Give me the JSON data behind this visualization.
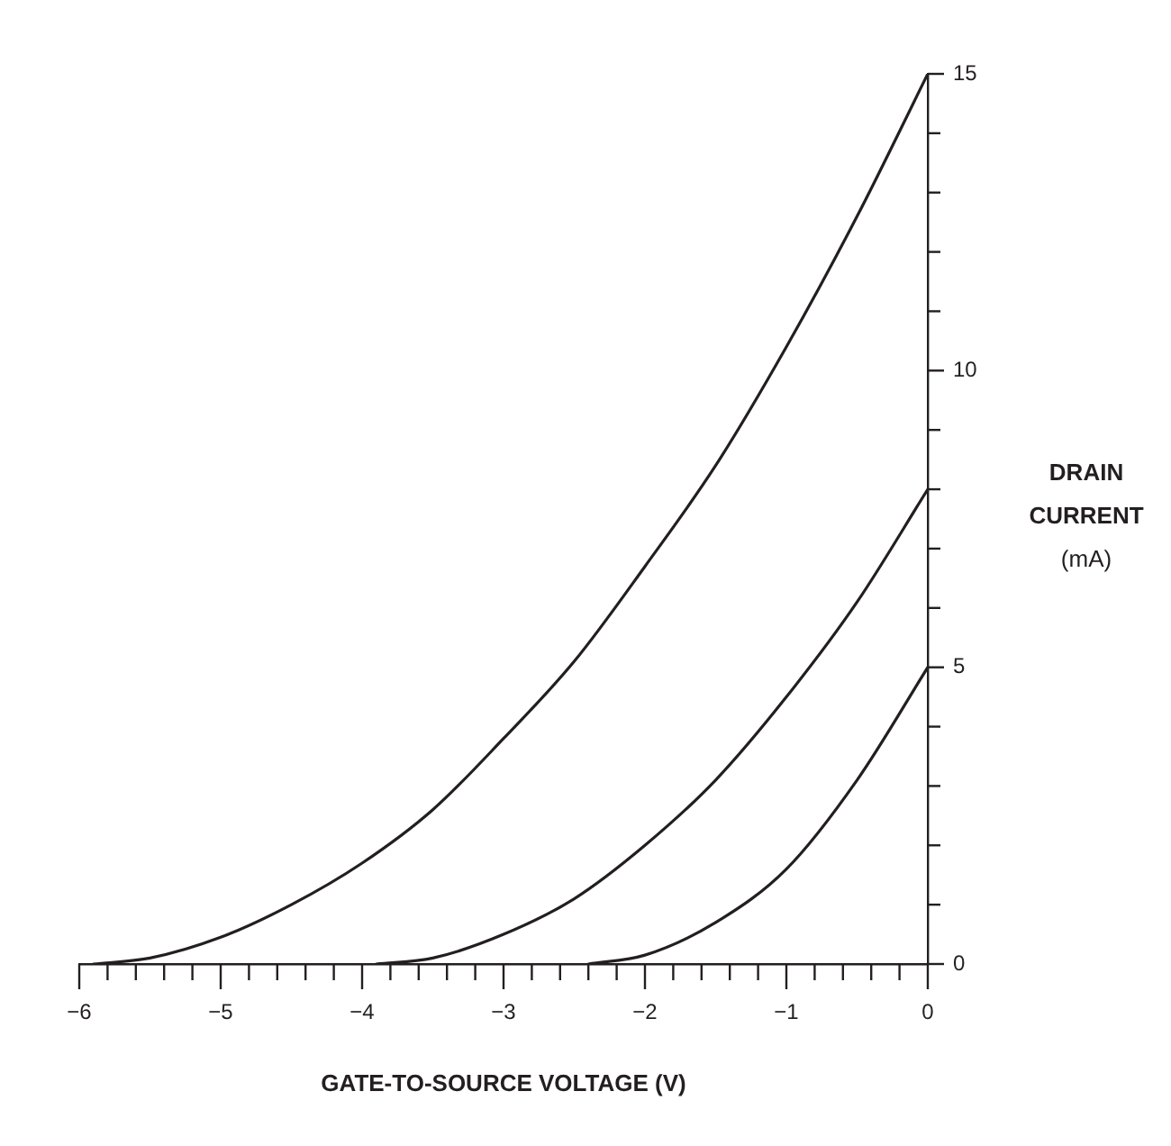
{
  "chart_data": {
    "type": "line",
    "xlabel": "GATE-TO-SOURCE VOLTAGE (V)",
    "ylabel": "DRAIN CURRENT (mA)",
    "marker": "none",
    "line_style": "solid",
    "xlim": [
      -6,
      0
    ],
    "xticks": [
      {
        "value": -6,
        "label": "−6"
      },
      {
        "value": -5.8,
        "label": null
      },
      {
        "value": -5.6,
        "label": null
      },
      {
        "value": -5.4,
        "label": null
      },
      {
        "value": -5.2,
        "label": null
      },
      {
        "value": -5,
        "label": "−5"
      },
      {
        "value": -4.8,
        "label": null
      },
      {
        "value": -4.6,
        "label": null
      },
      {
        "value": -4.4,
        "label": null
      },
      {
        "value": -4.2,
        "label": null
      },
      {
        "value": -4,
        "label": "−4"
      },
      {
        "value": -3.8,
        "label": null
      },
      {
        "value": -3.6,
        "label": null
      },
      {
        "value": -3.4,
        "label": null
      },
      {
        "value": -3.2,
        "label": null
      },
      {
        "value": -3,
        "label": "−3"
      },
      {
        "value": -2.8,
        "label": null
      },
      {
        "value": -2.6,
        "label": null
      },
      {
        "value": -2.4,
        "label": null
      },
      {
        "value": -2.2,
        "label": null
      },
      {
        "value": -2,
        "label": "−2"
      },
      {
        "value": -1.8,
        "label": null
      },
      {
        "value": -1.6,
        "label": null
      },
      {
        "value": -1.4,
        "label": null
      },
      {
        "value": -1.2,
        "label": null
      },
      {
        "value": -1,
        "label": "−1"
      },
      {
        "value": -0.8,
        "label": null
      },
      {
        "value": -0.6,
        "label": null
      },
      {
        "value": -0.4,
        "label": null
      },
      {
        "value": -0.2,
        "label": null
      },
      0
    ],
    "ylim": [
      0,
      15
    ],
    "yticks": [
      0,
      {
        "value": 1,
        "label": null
      },
      {
        "value": 2,
        "label": null
      },
      {
        "value": 3,
        "label": null
      },
      {
        "value": 4,
        "label": null
      },
      5,
      {
        "value": 6,
        "label": null
      },
      {
        "value": 7,
        "label": null
      },
      {
        "value": 8,
        "label": null
      },
      {
        "value": 9,
        "label": null
      },
      10,
      {
        "value": 11,
        "label": null
      },
      {
        "value": 12,
        "label": null
      },
      {
        "value": 13,
        "label": null
      },
      {
        "value": 14,
        "label": null
      },
      15
    ],
    "series": [
      {
        "color": "#231f20",
        "x": [
          -5.9,
          -5.5,
          -5,
          -4.5,
          -4,
          -3.5,
          -3,
          -2.5,
          -2,
          -1.5,
          -1,
          -0.5,
          0
        ],
        "values": [
          0,
          0.1,
          0.45,
          1,
          1.7,
          2.6,
          3.8,
          5.1,
          6.7,
          8.4,
          10.4,
          12.6,
          15
        ]
      },
      {
        "color": "#231f20",
        "x": [
          -3.9,
          -3.5,
          -3,
          -2.5,
          -2,
          -1.5,
          -1,
          -0.5,
          0
        ],
        "values": [
          0,
          0.1,
          0.5,
          1.1,
          2,
          3.1,
          4.5,
          6.1,
          8
        ]
      },
      {
        "color": "#231f20",
        "x": [
          -2.4,
          -2,
          -1.5,
          -1,
          -0.5,
          0
        ],
        "values": [
          0,
          0.15,
          0.7,
          1.6,
          3.1,
          5
        ]
      }
    ]
  }
}
